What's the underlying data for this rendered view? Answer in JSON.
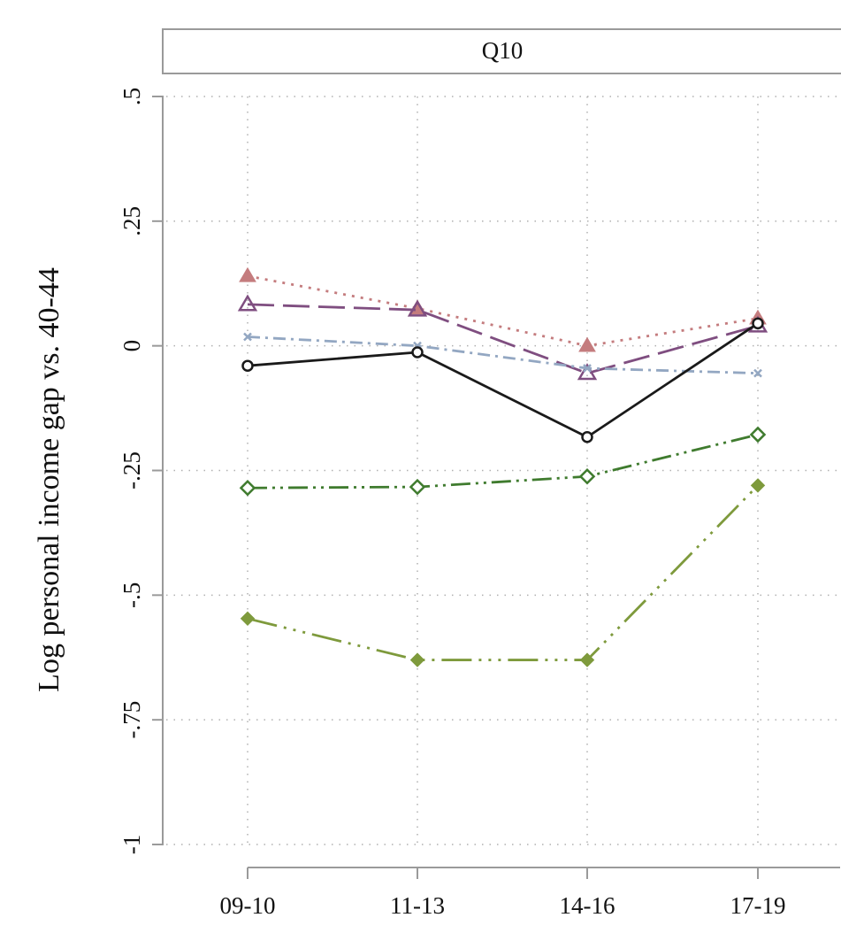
{
  "chart_data": {
    "type": "line",
    "panel_title": "Q10",
    "ylabel": "Log personal income gap vs. 40-44",
    "xlabel": "",
    "categories": [
      "09-10",
      "11-13",
      "14-16",
      "17-19"
    ],
    "ylim": [
      -1,
      0.5
    ],
    "yticks": [
      -1,
      -0.75,
      -0.5,
      -0.25,
      0,
      0.25,
      0.5
    ],
    "ytick_labels": [
      "-1",
      "-.75",
      "-.5",
      "-.25",
      "0",
      ".25",
      ".5"
    ],
    "grid": true,
    "series": [
      {
        "name": "series-1",
        "values": [
          0.14,
          0.075,
          0.0,
          0.055
        ],
        "color": "#c47c7e",
        "dash": "3,7",
        "marker": "triangle-filled"
      },
      {
        "name": "series-2",
        "values": [
          0.083,
          0.072,
          -0.055,
          0.04
        ],
        "color": "#7f4e80",
        "dash": "30,10",
        "marker": "triangle-open"
      },
      {
        "name": "series-3",
        "values": [
          0.018,
          0.0,
          -0.045,
          -0.055
        ],
        "color": "#93a7c2",
        "dash": "14,6,3,6",
        "marker": "x"
      },
      {
        "name": "series-4",
        "values": [
          -0.04,
          -0.013,
          -0.183,
          0.045
        ],
        "color": "#1a1a1a",
        "dash": "",
        "marker": "circle-open"
      },
      {
        "name": "series-5",
        "values": [
          -0.285,
          -0.283,
          -0.262,
          -0.178
        ],
        "color": "#3f7b2e",
        "dash": "22,6,3,6,3,6",
        "marker": "diamond-open"
      },
      {
        "name": "series-6",
        "values": [
          -0.547,
          -0.63,
          -0.63,
          -0.28
        ],
        "color": "#7e9a3c",
        "dash": "34,8,3,8,3,8,3,8",
        "marker": "diamond-filled"
      }
    ]
  }
}
